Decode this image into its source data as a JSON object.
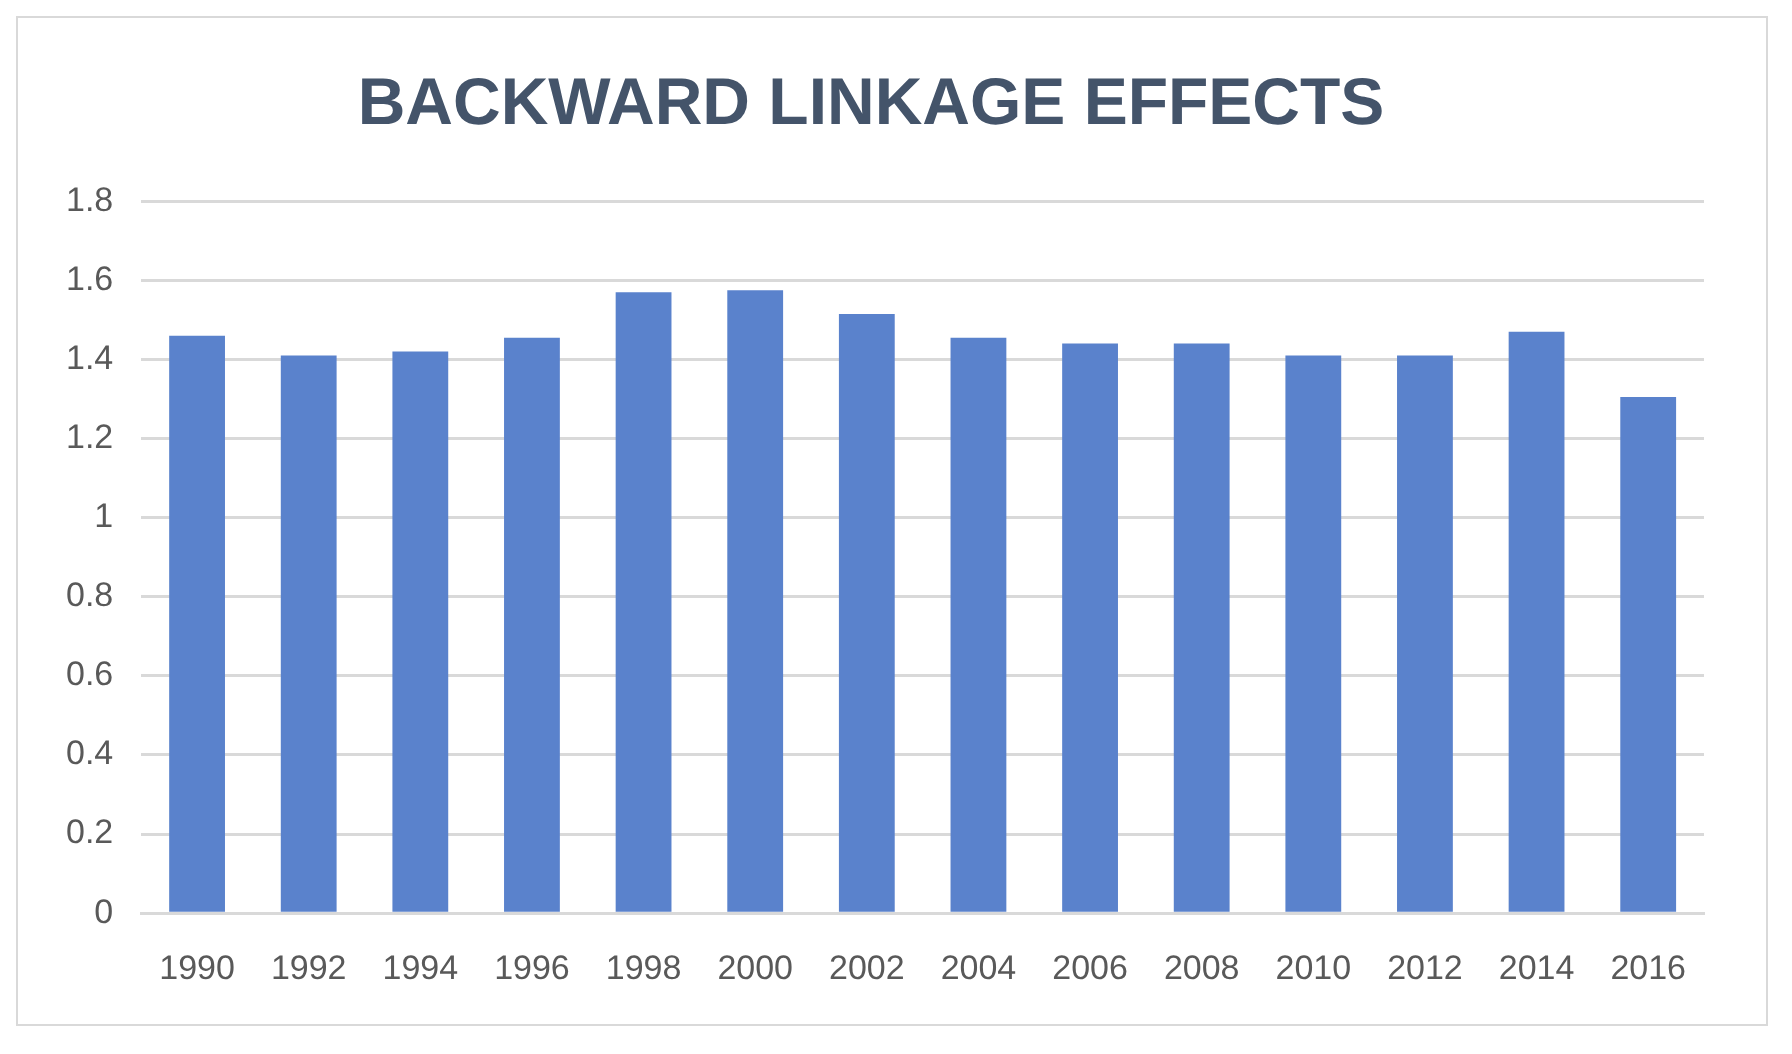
{
  "chart_data": {
    "type": "bar",
    "title": "BACKWARD LINKAGE EFFECTS",
    "categories": [
      "1990",
      "1992",
      "1994",
      "1996",
      "1998",
      "2000",
      "2002",
      "2004",
      "2006",
      "2008",
      "2010",
      "2012",
      "2014",
      "2016"
    ],
    "values": [
      1.46,
      1.41,
      1.42,
      1.455,
      1.57,
      1.575,
      1.515,
      1.455,
      1.44,
      1.44,
      1.41,
      1.41,
      1.47,
      1.305
    ],
    "color": "#5a82cc",
    "ylim": [
      0,
      1.8
    ],
    "yticks": [
      0,
      0.2,
      0.4,
      0.6,
      0.8,
      1,
      1.2,
      1.4,
      1.6,
      1.8
    ],
    "grid": "y"
  }
}
